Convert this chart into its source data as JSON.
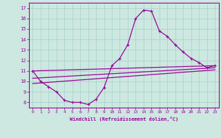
{
  "xlabel": "Windchill (Refroidissement éolien,°C)",
  "bg_color": "#cce8e0",
  "line_color": "#990099",
  "grid_color": "#aad4cc",
  "xlim": [
    -0.5,
    23.5
  ],
  "ylim": [
    7.5,
    17.5
  ],
  "xticks": [
    0,
    1,
    2,
    3,
    4,
    5,
    6,
    7,
    8,
    9,
    10,
    11,
    12,
    13,
    14,
    15,
    16,
    17,
    18,
    19,
    20,
    21,
    22,
    23
  ],
  "yticks": [
    8,
    9,
    10,
    11,
    12,
    13,
    14,
    15,
    16,
    17
  ],
  "main_x": [
    0,
    1,
    2,
    3,
    4,
    5,
    6,
    7,
    8,
    9,
    10,
    11,
    12,
    13,
    14,
    15,
    16,
    17,
    18,
    19,
    20,
    21,
    22,
    23
  ],
  "main_y": [
    11.0,
    10.0,
    9.5,
    9.0,
    8.2,
    8.0,
    8.0,
    7.8,
    8.3,
    9.4,
    11.5,
    12.2,
    13.5,
    16.0,
    16.8,
    16.7,
    14.8,
    14.3,
    13.5,
    12.8,
    12.2,
    11.8,
    11.3,
    11.5
  ],
  "line2_x": [
    0,
    23
  ],
  "line2_y": [
    11.0,
    11.5
  ],
  "line3_x": [
    0,
    23
  ],
  "line3_y": [
    10.3,
    11.3
  ],
  "line4_x": [
    0,
    23
  ],
  "line4_y": [
    9.8,
    11.1
  ]
}
